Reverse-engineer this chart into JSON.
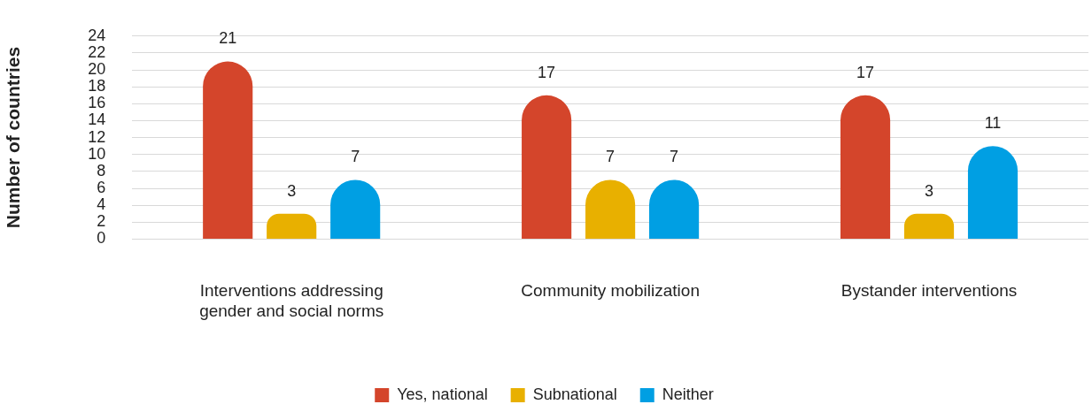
{
  "chart_data": {
    "type": "bar",
    "ylabel": "Number of countries",
    "categories": [
      "Interventions addressing gender and social norms",
      "Community mobilization",
      "Bystander interventions"
    ],
    "series": [
      {
        "name": "Yes, national",
        "color": "#d4452b",
        "values": [
          21,
          17,
          17
        ]
      },
      {
        "name": "Subnational",
        "color": "#e8b000",
        "values": [
          3,
          7,
          3
        ]
      },
      {
        "name": "Neither",
        "color": "#009fe3",
        "values": [
          7,
          7,
          11
        ]
      }
    ],
    "ylim": [
      0,
      24
    ],
    "yticks": [
      0,
      2,
      4,
      6,
      8,
      10,
      12,
      14,
      16,
      18,
      20,
      22,
      24
    ],
    "grid": "y",
    "legend": "bottom",
    "data_labels": true
  }
}
